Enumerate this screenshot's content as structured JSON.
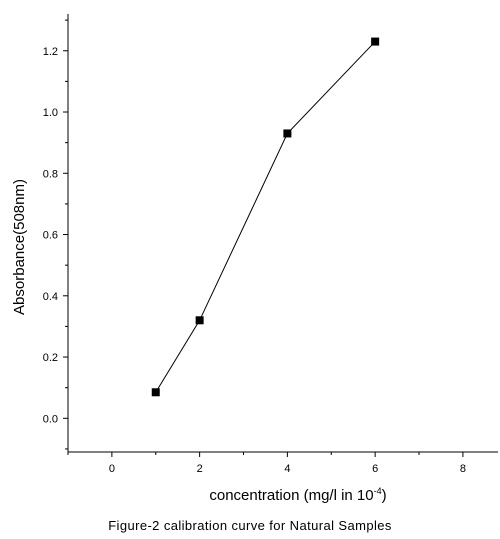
{
  "caption": "Figure-2  calibration curve for Natural Samples",
  "chart_data": {
    "type": "line",
    "title": "",
    "xlabel_main": "concentration (mg/l in 10",
    "xlabel_sup": "-4",
    "xlabel_end": ")",
    "ylabel": "Absorbance(508nm)",
    "xlim": [
      -1,
      8.8
    ],
    "ylim": [
      -0.11,
      1.32
    ],
    "x_ticks": [
      0,
      2,
      4,
      6,
      8
    ],
    "x_tick_labels": [
      "0",
      "2",
      "4",
      "6",
      "8"
    ],
    "y_ticks": [
      0.0,
      0.2,
      0.4,
      0.6,
      0.8,
      1.0,
      1.2
    ],
    "y_tick_labels": [
      "0.0",
      "0.2",
      "0.4",
      "0.6",
      "0.8",
      "1.0",
      "1.2"
    ],
    "grid": false,
    "marker": "square",
    "color": "#000000",
    "series": [
      {
        "x": [
          1,
          2,
          4,
          6
        ],
        "y": [
          0.085,
          0.32,
          0.93,
          1.23
        ]
      }
    ]
  }
}
